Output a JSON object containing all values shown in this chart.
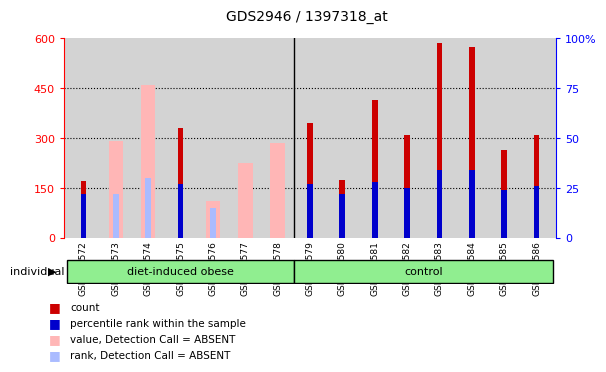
{
  "title": "GDS2946 / 1397318_at",
  "samples": [
    "GSM215572",
    "GSM215573",
    "GSM215574",
    "GSM215575",
    "GSM215576",
    "GSM215577",
    "GSM215578",
    "GSM215579",
    "GSM215580",
    "GSM215581",
    "GSM215582",
    "GSM215583",
    "GSM215584",
    "GSM215585",
    "GSM215586"
  ],
  "count_values": [
    170,
    null,
    null,
    330,
    null,
    null,
    null,
    345,
    175,
    415,
    310,
    585,
    575,
    265,
    310
  ],
  "rank_pct": [
    22,
    null,
    null,
    27,
    null,
    null,
    null,
    27,
    22,
    28,
    25,
    34,
    34,
    24,
    26
  ],
  "absent_value_values": [
    null,
    290,
    460,
    null,
    110,
    225,
    285,
    null,
    null,
    null,
    null,
    null,
    null,
    null,
    null
  ],
  "absent_rank_pct": [
    null,
    22,
    30,
    null,
    15,
    null,
    null,
    null,
    null,
    null,
    null,
    null,
    null,
    null,
    null
  ],
  "ylim_left": [
    0,
    600
  ],
  "ylim_right": [
    0,
    100
  ],
  "yticks_left": [
    0,
    150,
    300,
    450,
    600
  ],
  "yticks_right": [
    0,
    25,
    50,
    75,
    100
  ],
  "group1_label": "diet-induced obese",
  "group2_label": "control",
  "group_color": "#90ee90",
  "bar_color_count": "#cc0000",
  "bar_color_rank": "#0000cc",
  "bar_color_absent_value": "#ffb6b6",
  "bar_color_absent_rank": "#aabbff",
  "background_color": "#d3d3d3",
  "legend_items": [
    "count",
    "percentile rank within the sample",
    "value, Detection Call = ABSENT",
    "rank, Detection Call = ABSENT"
  ],
  "legend_colors": [
    "#cc0000",
    "#0000cc",
    "#ffb6b6",
    "#aabbff"
  ]
}
